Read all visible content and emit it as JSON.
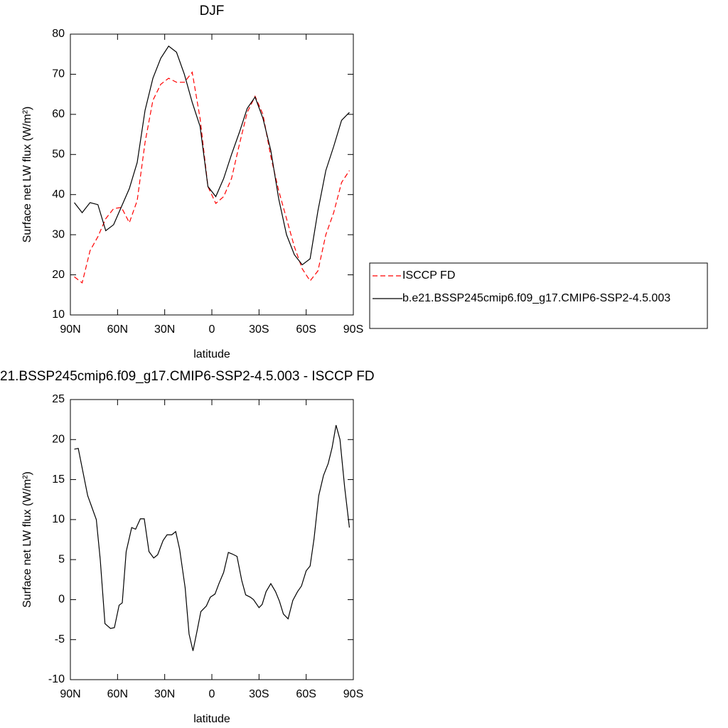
{
  "chart_data": [
    {
      "type": "line",
      "title": "DJF",
      "xlabel": "latitude",
      "ylabel": "Surface net LW flux (W/m²)",
      "x": [
        87.5,
        82.5,
        77.5,
        72.5,
        67.5,
        62.5,
        57.5,
        52.5,
        47.5,
        42.5,
        37.5,
        32.5,
        27.5,
        22.5,
        17.5,
        12.5,
        7.5,
        2.5,
        -2.5,
        -7.5,
        -12.5,
        -17.5,
        -22.5,
        -27.5,
        -32.5,
        -37.5,
        -42.5,
        -47.5,
        -52.5,
        -57.5,
        -62.5,
        -67.5,
        -72.5,
        -77.5,
        -82.5,
        -87.5
      ],
      "series": [
        {
          "name": "ISCCP FD",
          "color": "#ff0000",
          "line_style": "dashed",
          "values": [
            19.5,
            18,
            26,
            29.5,
            34,
            36.5,
            36.8,
            33,
            38.5,
            53,
            63.5,
            67.5,
            69,
            68,
            68,
            70.5,
            59,
            42,
            37.8,
            39.5,
            44,
            52.5,
            60.5,
            64.5,
            60,
            49.5,
            41,
            34,
            27,
            21.5,
            18.5,
            21,
            30,
            35.5,
            43,
            46
          ]
        },
        {
          "name": "b.e21.BSSP245cmip6.f09_g17.CMIP6-SSP2-4.5.003",
          "color": "#000000",
          "line_style": "solid",
          "values": [
            38,
            35.5,
            38,
            37.5,
            31,
            32.5,
            37,
            41.5,
            48,
            61,
            69,
            74,
            77,
            75.5,
            70,
            63,
            57,
            42,
            39.5,
            44,
            50,
            55.5,
            61.5,
            64.3,
            59,
            51,
            39,
            30,
            25,
            22.5,
            24,
            36,
            46,
            52,
            58.5,
            60.5
          ]
        }
      ],
      "xlim": [
        90,
        -90
      ],
      "xticks": [
        {
          "value": 90,
          "label": "90N"
        },
        {
          "value": 60,
          "label": "60N"
        },
        {
          "value": 30,
          "label": "30N"
        },
        0,
        {
          "value": -30,
          "label": "30S"
        },
        {
          "value": -60,
          "label": "60S"
        },
        {
          "value": -90,
          "label": "90S"
        }
      ],
      "ylim": [
        10,
        80
      ],
      "yticks": [
        10,
        20,
        30,
        40,
        50,
        60,
        70,
        80
      ],
      "legend": "right"
    },
    {
      "type": "line",
      "title": "21.BSSP245cmip6.f09_g17.CMIP6-SSP2-4.5.003 - ISCCP FD",
      "xlabel": "latitude",
      "ylabel": "Surface net LW flux (W/m²)",
      "x": [
        87.5,
        85,
        79,
        73.5,
        71,
        68,
        64.5,
        62,
        59,
        57,
        54.5,
        51,
        48.5,
        45.5,
        43,
        40,
        37,
        34.5,
        31,
        28.5,
        25.5,
        23,
        20.5,
        17,
        14.5,
        12,
        9.5,
        7,
        3.5,
        1,
        -2,
        -4.5,
        -7.5,
        -10.5,
        -13,
        -16,
        -19,
        -21.5,
        -24.5,
        -26.5,
        -30,
        -32,
        -34.5,
        -37.5,
        -40.5,
        -43,
        -45.5,
        -48.5,
        -51.5,
        -54.5,
        -57,
        -60,
        -62.5,
        -65,
        -68,
        -71,
        -74,
        -76.5,
        -79,
        -81.5,
        -84.5,
        -87.5
      ],
      "values": [
        18.8,
        18.9,
        13,
        10,
        5,
        -3,
        -3.6,
        -3.5,
        -0.7,
        -0.4,
        6,
        9,
        8.8,
        10.1,
        10.1,
        6,
        5.2,
        5.6,
        7.4,
        8.1,
        8.1,
        8.5,
        6.3,
        1.5,
        -4.3,
        -6.4,
        -4,
        -1.5,
        -0.8,
        0.3,
        0.7,
        2,
        3.4,
        5.9,
        5.7,
        5.4,
        2.4,
        0.6,
        0.3,
        0,
        -1,
        -0.6,
        1,
        2,
        1,
        -0.2,
        -1.8,
        -2.4,
        -0.1,
        1,
        1.7,
        3.6,
        4.2,
        7.6,
        13,
        15.5,
        17,
        19,
        21.8,
        20,
        14,
        9
      ],
      "color": "#000000",
      "xlim": [
        90,
        -90
      ],
      "xticks": [
        {
          "value": 90,
          "label": "90N"
        },
        {
          "value": 60,
          "label": "60N"
        },
        {
          "value": 30,
          "label": "30N"
        },
        0,
        {
          "value": -30,
          "label": "30S"
        },
        {
          "value": -60,
          "label": "60S"
        },
        {
          "value": -90,
          "label": "90S"
        }
      ],
      "ylim": [
        -10,
        25
      ],
      "yticks": [
        -10,
        -5,
        0,
        5,
        10,
        15,
        20,
        25
      ]
    }
  ]
}
